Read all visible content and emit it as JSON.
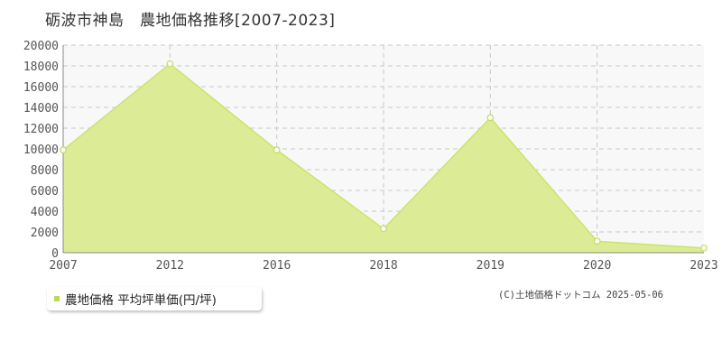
{
  "title": "砺波市神島　農地価格推移[2007-2023]",
  "legend": {
    "label": "農地価格 平均坪単価(円/坪)"
  },
  "copyright": "(C)土地価格ドットコム 2025-05-06",
  "colors": {
    "area_fill": "#dcec96",
    "line": "#c9e46a",
    "marker_fill": "#ffffff",
    "marker_stroke": "#c3dd6a",
    "plot_background": "#f8f8f8",
    "grid": "#c8c8c8",
    "legend_swatch": "#b9d95a"
  },
  "chart_data": {
    "type": "area",
    "title": "砺波市神島　農地価格推移[2007-2023]",
    "xlabel": "",
    "ylabel": "",
    "x": [
      "2007",
      "2012",
      "2016",
      "2018",
      "2019",
      "2020",
      "2023"
    ],
    "series": [
      {
        "name": "農地価格 平均坪単価(円/坪)",
        "values": [
          9900,
          18200,
          9900,
          2300,
          13000,
          1100,
          450
        ]
      }
    ],
    "ylim": [
      0,
      20000
    ],
    "yticks": [
      "0",
      "2000",
      "4000",
      "6000",
      "8000",
      "10000",
      "12000",
      "14000",
      "16000",
      "18000",
      "20000"
    ],
    "grid": true,
    "legend_position": "bottom-left"
  }
}
